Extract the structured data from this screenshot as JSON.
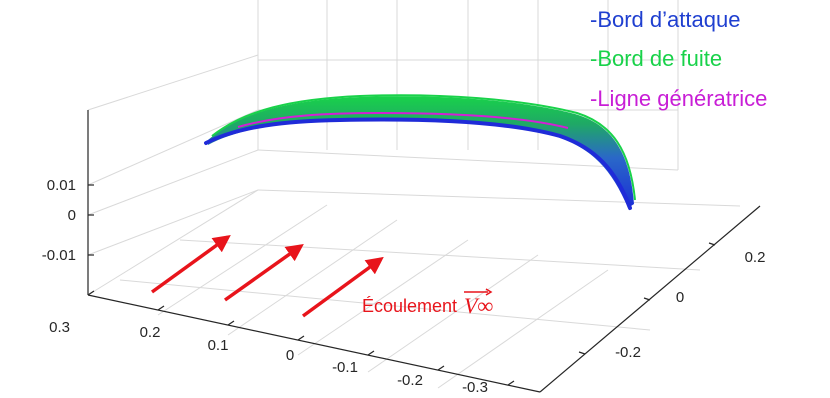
{
  "chart_data": {
    "type": "3d-surface",
    "legend": [
      {
        "name": "-Bord d’attaque",
        "color": "#1f3fd0"
      },
      {
        "name": "-Bord de fuite",
        "color": "#19d24a"
      },
      {
        "name": "-Ligne génératrice",
        "color": "#c81ed6"
      }
    ],
    "legend_position": "top-right",
    "axes": {
      "x": {
        "ticks": [
          "0.3",
          "0.2",
          "0.1",
          "0",
          "-0.1",
          "-0.2",
          "-0.3"
        ],
        "range": [
          -0.3,
          0.3
        ]
      },
      "y": {
        "ticks": [
          "-0.2",
          "0",
          "0.2"
        ],
        "range": [
          -0.3,
          0.3
        ]
      },
      "z": {
        "ticks": [
          "0.01",
          "0",
          "-0.01"
        ],
        "range": [
          -0.015,
          0.02
        ]
      }
    },
    "grid": true,
    "annotation": {
      "text": "Écoulement",
      "symbol": "V∞",
      "arrows": 3,
      "color": "#e8141b"
    }
  }
}
